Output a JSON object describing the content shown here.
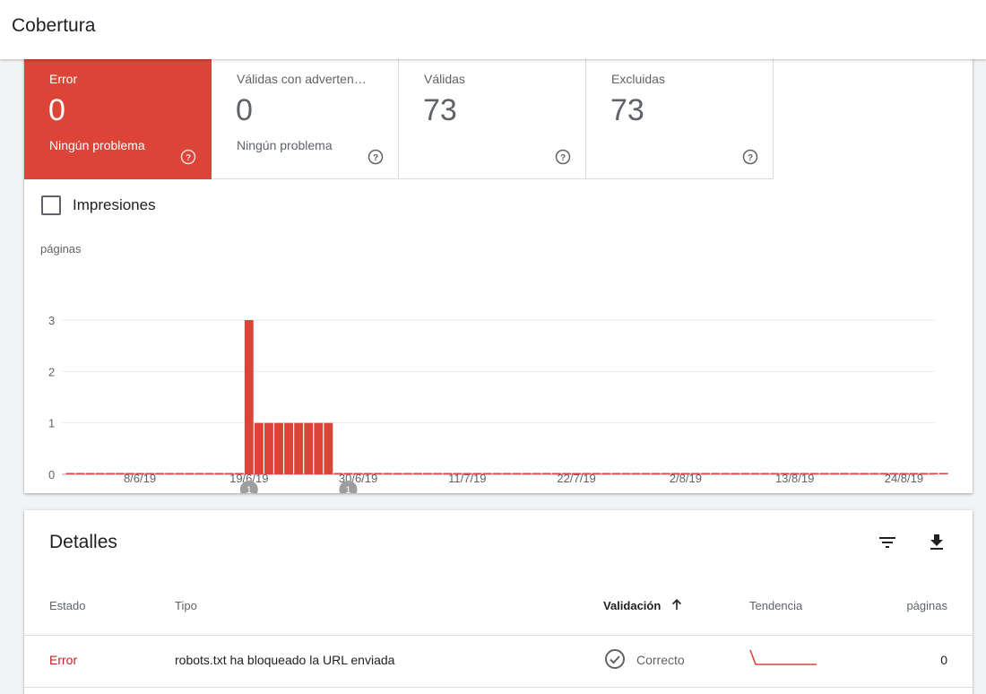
{
  "header": {
    "title": "Cobertura"
  },
  "tiles": [
    {
      "label": "Error",
      "value": "0",
      "sub": "Ningún problema"
    },
    {
      "label": "Válidas con adverten…",
      "value": "0",
      "sub": "Ningún problema"
    },
    {
      "label": "Válidas",
      "value": "73",
      "sub": ""
    },
    {
      "label": "Excluidas",
      "value": "73",
      "sub": ""
    }
  ],
  "impressions": {
    "label": "Impresiones"
  },
  "chart_data": {
    "type": "bar",
    "ylabel": "páginas",
    "ylim": [
      0,
      3
    ],
    "yticks": [
      "0",
      "1",
      "2",
      "3"
    ],
    "xticks": [
      "8/6/19",
      "19/6/19",
      "30/6/19",
      "11/7/19",
      "22/7/19",
      "2/8/19",
      "13/8/19",
      "24/8/19"
    ],
    "start_date": "2019-06-01",
    "values": [
      0,
      0,
      0,
      0,
      0,
      0,
      0,
      0,
      0,
      0,
      0,
      0,
      0,
      0,
      0,
      0,
      0,
      0,
      3,
      1,
      1,
      1,
      1,
      1,
      1,
      1,
      1,
      0,
      0,
      0,
      0,
      0,
      0,
      0,
      0,
      0,
      0,
      0,
      0,
      0,
      0,
      0,
      0,
      0,
      0,
      0,
      0,
      0,
      0,
      0,
      0,
      0,
      0,
      0,
      0,
      0,
      0,
      0,
      0,
      0,
      0,
      0,
      0,
      0,
      0,
      0,
      0,
      0,
      0,
      0,
      0,
      0,
      0,
      0,
      0,
      0,
      0,
      0,
      0,
      0,
      0,
      0,
      0,
      0,
      0,
      0,
      0,
      0,
      0
    ],
    "annotations": [
      {
        "label": "1",
        "date": "19/6/19"
      },
      {
        "label": "1",
        "date": "29/6/19"
      }
    ],
    "color": "#db4437"
  },
  "details": {
    "title": "Detalles",
    "columns": {
      "estado": "Estado",
      "tipo": "Tipo",
      "validacion": "Validación",
      "tendencia": "Tendencia",
      "paginas": "páginas"
    },
    "rows": [
      {
        "estado": "Error",
        "tipo": "robots.txt ha bloqueado la URL enviada",
        "validacion": "Correcto",
        "paginas": "0"
      }
    ]
  },
  "colors": {
    "accent": "#db4437",
    "error_text": "#c5221f"
  }
}
